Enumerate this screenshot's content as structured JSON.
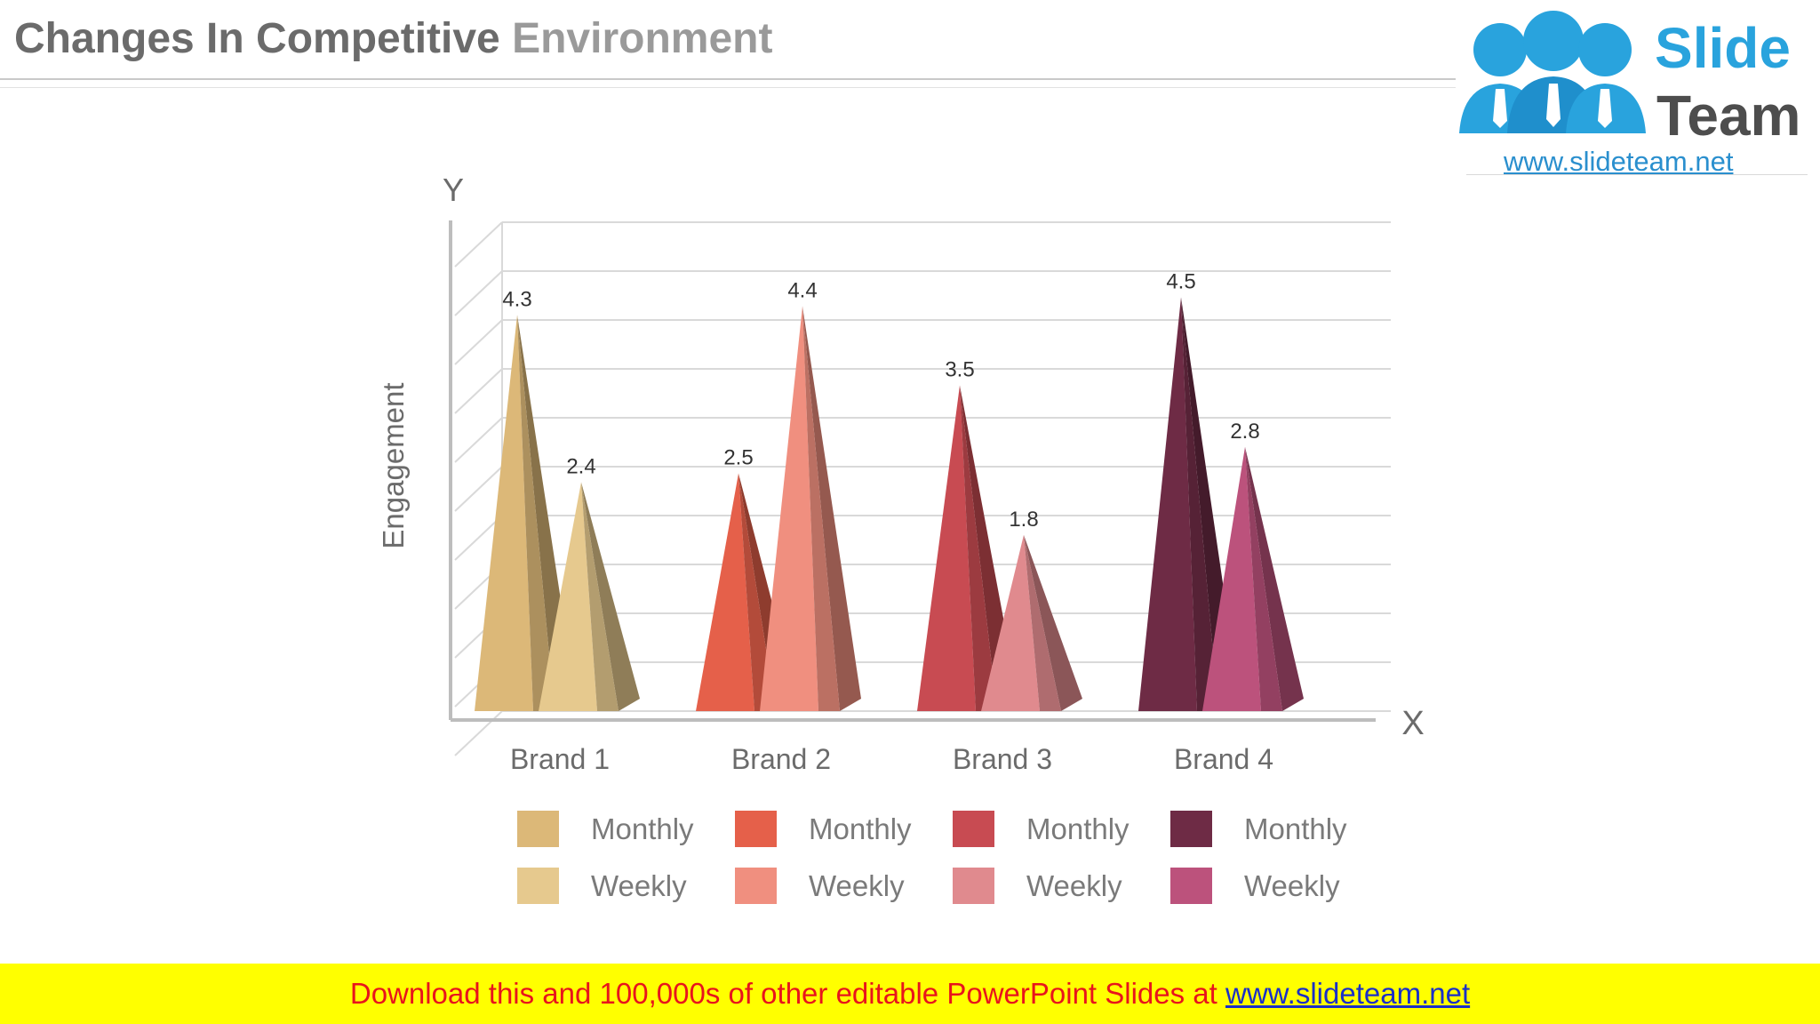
{
  "slide": {
    "title_part1": "Changes In Competitive",
    "title_part2": "Environment"
  },
  "logo": {
    "word1": "Slide",
    "word2": "Team",
    "url": "www.slideteam.net"
  },
  "banner": {
    "text": "Download this and 100,000s of other editable PowerPoint Slides at",
    "link": "www.slideteam.net"
  },
  "chart_data": {
    "type": "bar",
    "shape": "pyramid-3d",
    "categories": [
      "Brand 1",
      "Brand 2",
      "Brand 3",
      "Brand 4"
    ],
    "series": [
      {
        "name": "Monthly",
        "values": [
          4.3,
          2.5,
          3.5,
          4.5
        ]
      },
      {
        "name": "Weekly",
        "values": [
          2.4,
          4.4,
          1.8,
          2.8
        ]
      }
    ],
    "colors": [
      [
        "#dcb878",
        "#e6c98e"
      ],
      [
        "#e5604a",
        "#f08f7f"
      ],
      [
        "#c84b52",
        "#e08a8e"
      ],
      [
        "#6e2b45",
        "#bc527c"
      ]
    ],
    "xlabel": "X",
    "ylabel": "Engagement",
    "y_axis_letter": "Y",
    "ylim": [
      0,
      5
    ],
    "grid": true,
    "legend_position": "bottom"
  }
}
